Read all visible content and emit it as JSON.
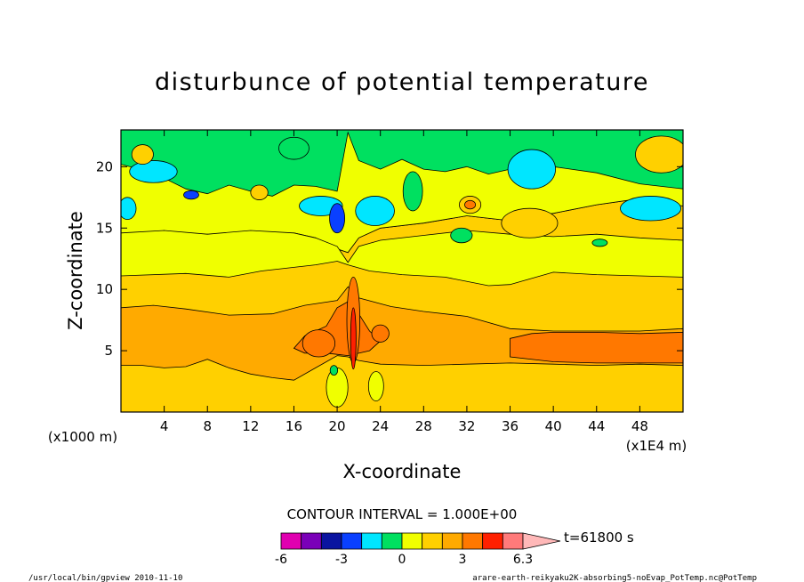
{
  "chart_data": {
    "type": "heatmap",
    "title": "disturbunce of potential temperature",
    "xlabel": "X-coordinate",
    "ylabel": "Z-coordinate",
    "x_unit_note": "(x1E4 m)",
    "y_unit_note": "(x1000 m)",
    "xlim": [
      0,
      52
    ],
    "ylim": [
      0,
      23
    ],
    "x_ticks": [
      4,
      8,
      12,
      16,
      20,
      24,
      28,
      32,
      36,
      40,
      44,
      48
    ],
    "y_ticks": [
      5,
      10,
      15,
      20
    ],
    "contour_interval_text": "CONTOUR INTERVAL = 1.000E+00",
    "colorbar": {
      "levels": [
        -6,
        -5,
        -4,
        -3,
        -2,
        -1,
        0,
        1,
        2,
        3,
        4,
        5,
        6
      ],
      "labels": [
        "-6",
        "-3",
        "0",
        "3",
        "6.3"
      ],
      "colors": [
        "#e000b0",
        "#7a00b8",
        "#0a14a0",
        "#0a40ff",
        "#00e6ff",
        "#00e060",
        "#f0ff00",
        "#ffd000",
        "#ffaa00",
        "#ff7800",
        "#ff2000",
        "#ff7a7a",
        "#ffb8b8"
      ]
    },
    "time_label": "t=61800 s",
    "footer_left": "/usr/local/bin/gpview  2010-11-10",
    "footer_right": "arare-earth-reikyaku2K-absorbing5-noEvap_PotTemp.nc@PotTemp",
    "layers": [
      {
        "name": "stratosphere-green",
        "color": "#00e060",
        "poly": [
          [
            0,
            23
          ],
          [
            52,
            23
          ],
          [
            52,
            16.8
          ],
          [
            48,
            17.4
          ],
          [
            44,
            16.9
          ],
          [
            40,
            16.2
          ],
          [
            36,
            15.6
          ],
          [
            32,
            16.0
          ],
          [
            28,
            15.4
          ],
          [
            24,
            15.0
          ],
          [
            22,
            14.2
          ],
          [
            21,
            13.0
          ],
          [
            20,
            13.3
          ],
          [
            18,
            14.2
          ],
          [
            16,
            14.6
          ],
          [
            14,
            14.0
          ],
          [
            12,
            14.5
          ],
          [
            10,
            14.0
          ],
          [
            8,
            14.5
          ],
          [
            6,
            14.0
          ],
          [
            4,
            14.8
          ],
          [
            2,
            14.2
          ],
          [
            0,
            13.8
          ]
        ]
      },
      {
        "name": "yellow-band-top",
        "color": "#f0ff00",
        "poly": [
          [
            0,
            20.2
          ],
          [
            3,
            19.5
          ],
          [
            6,
            18.2
          ],
          [
            8,
            17.8
          ],
          [
            10,
            18.5
          ],
          [
            12,
            18.0
          ],
          [
            14,
            17.6
          ],
          [
            16,
            18.5
          ],
          [
            18,
            18.4
          ],
          [
            20,
            18.0
          ],
          [
            21,
            22.8
          ],
          [
            22,
            20.5
          ],
          [
            24,
            19.8
          ],
          [
            26,
            20.6
          ],
          [
            28,
            19.8
          ],
          [
            30,
            19.6
          ],
          [
            32,
            20.0
          ],
          [
            34,
            19.4
          ],
          [
            36,
            19.8
          ],
          [
            38,
            20.5
          ],
          [
            40,
            20.0
          ],
          [
            44,
            19.5
          ],
          [
            48,
            18.6
          ],
          [
            52,
            18.2
          ],
          [
            52,
            16.8
          ],
          [
            48,
            17.4
          ],
          [
            44,
            16.9
          ],
          [
            40,
            16.2
          ],
          [
            36,
            15.6
          ],
          [
            32,
            16.0
          ],
          [
            28,
            15.4
          ],
          [
            24,
            15.0
          ],
          [
            22,
            14.2
          ],
          [
            21,
            13.0
          ],
          [
            20,
            13.3
          ],
          [
            18,
            14.2
          ],
          [
            16,
            14.6
          ],
          [
            14,
            14.0
          ],
          [
            12,
            14.5
          ],
          [
            10,
            14.0
          ],
          [
            8,
            14.5
          ],
          [
            6,
            14.0
          ],
          [
            4,
            14.8
          ],
          [
            2,
            14.2
          ],
          [
            0,
            13.8
          ]
        ]
      },
      {
        "name": "troposphere-yellow",
        "color": "#f0ff00",
        "poly": [
          [
            0,
            14.6
          ],
          [
            4,
            14.8
          ],
          [
            8,
            14.5
          ],
          [
            12,
            14.8
          ],
          [
            16,
            14.6
          ],
          [
            18,
            14.2
          ],
          [
            20,
            13.5
          ],
          [
            21,
            12.2
          ],
          [
            22,
            13.5
          ],
          [
            24,
            14.0
          ],
          [
            28,
            14.4
          ],
          [
            32,
            14.8
          ],
          [
            36,
            14.5
          ],
          [
            40,
            14.3
          ],
          [
            44,
            14.5
          ],
          [
            48,
            14.2
          ],
          [
            52,
            14.0
          ],
          [
            52,
            0
          ],
          [
            0,
            0
          ]
        ]
      },
      {
        "name": "orange-light",
        "color": "#ffd000",
        "poly": [
          [
            0,
            11.1
          ],
          [
            6,
            11.3
          ],
          [
            10,
            11.0
          ],
          [
            13,
            11.5
          ],
          [
            16,
            11.8
          ],
          [
            18,
            12.0
          ],
          [
            20,
            12.3
          ],
          [
            21,
            12.0
          ],
          [
            23,
            11.5
          ],
          [
            26,
            11.2
          ],
          [
            30,
            11.0
          ],
          [
            34,
            10.3
          ],
          [
            36,
            10.4
          ],
          [
            40,
            11.4
          ],
          [
            44,
            11.2
          ],
          [
            48,
            11.1
          ],
          [
            52,
            11.0
          ],
          [
            52,
            0
          ],
          [
            0,
            0
          ]
        ]
      },
      {
        "name": "orange-mid",
        "color": "#ffaa00",
        "poly": [
          [
            0,
            8.5
          ],
          [
            3,
            8.7
          ],
          [
            6,
            8.4
          ],
          [
            10,
            7.9
          ],
          [
            14,
            8.0
          ],
          [
            17,
            8.7
          ],
          [
            20,
            9.1
          ],
          [
            21,
            10.2
          ],
          [
            22,
            9.3
          ],
          [
            25,
            8.6
          ],
          [
            28,
            8.2
          ],
          [
            32,
            7.8
          ],
          [
            36,
            6.8
          ],
          [
            38,
            6.7
          ],
          [
            40,
            6.6
          ],
          [
            44,
            6.6
          ],
          [
            48,
            6.6
          ],
          [
            52,
            6.8
          ],
          [
            52,
            3.8
          ],
          [
            48,
            3.9
          ],
          [
            44,
            3.8
          ],
          [
            40,
            3.9
          ],
          [
            36,
            4.0
          ],
          [
            32,
            3.9
          ],
          [
            28,
            3.8
          ],
          [
            24,
            3.9
          ],
          [
            22,
            4.2
          ],
          [
            21,
            4.5
          ],
          [
            20,
            4.6
          ],
          [
            18,
            3.6
          ],
          [
            16,
            2.6
          ],
          [
            14,
            2.8
          ],
          [
            12,
            3.1
          ],
          [
            10,
            3.6
          ],
          [
            8,
            4.3
          ],
          [
            6,
            3.7
          ],
          [
            4,
            3.6
          ],
          [
            2,
            3.8
          ],
          [
            0,
            3.8
          ]
        ]
      },
      {
        "name": "orange-deep-center",
        "color": "#ff7800",
        "poly": [
          [
            16,
            5.2
          ],
          [
            17,
            6.2
          ],
          [
            18,
            6.6
          ],
          [
            19,
            7.0
          ],
          [
            20,
            8.5
          ],
          [
            21,
            9.0
          ],
          [
            22,
            8.0
          ],
          [
            23,
            6.6
          ],
          [
            24,
            5.8
          ],
          [
            23,
            5.0
          ],
          [
            21,
            4.6
          ],
          [
            19,
            4.8
          ],
          [
            17,
            4.8
          ]
        ]
      },
      {
        "name": "orange-deep-right",
        "color": "#ff7800",
        "poly": [
          [
            36,
            6.0
          ],
          [
            38,
            6.4
          ],
          [
            40,
            6.5
          ],
          [
            44,
            6.5
          ],
          [
            48,
            6.4
          ],
          [
            52,
            6.5
          ],
          [
            52,
            4.0
          ],
          [
            48,
            4.0
          ],
          [
            44,
            4.0
          ],
          [
            40,
            4.1
          ],
          [
            36,
            4.5
          ]
        ]
      }
    ],
    "blobs": [
      {
        "color": "#00e6ff",
        "cx": 3,
        "cy": 19.6,
        "rx": 2.2,
        "ry": 0.9
      },
      {
        "color": "#00e6ff",
        "cx": 0.6,
        "cy": 16.6,
        "rx": 0.8,
        "ry": 0.9
      },
      {
        "color": "#00e6ff",
        "cx": 38,
        "cy": 19.8,
        "rx": 2.2,
        "ry": 1.6
      },
      {
        "color": "#00e6ff",
        "cx": 49,
        "cy": 16.6,
        "rx": 2.8,
        "ry": 1.0
      },
      {
        "color": "#00e6ff",
        "cx": 18.5,
        "cy": 16.8,
        "rx": 2.0,
        "ry": 0.8
      },
      {
        "color": "#00e6ff",
        "cx": 23.5,
        "cy": 16.4,
        "rx": 1.8,
        "ry": 1.2
      },
      {
        "color": "#0a40ff",
        "cx": 20,
        "cy": 15.8,
        "rx": 0.7,
        "ry": 1.2
      },
      {
        "color": "#0a40ff",
        "cx": 6.5,
        "cy": 17.7,
        "rx": 0.7,
        "ry": 0.35
      },
      {
        "color": "#00e060",
        "cx": 16,
        "cy": 21.5,
        "rx": 1.4,
        "ry": 0.9
      },
      {
        "color": "#00e060",
        "cx": 27,
        "cy": 18.0,
        "rx": 0.9,
        "ry": 1.6
      },
      {
        "color": "#00e060",
        "cx": 31.5,
        "cy": 14.4,
        "rx": 1.0,
        "ry": 0.6
      },
      {
        "color": "#00e060",
        "cx": 44.3,
        "cy": 13.8,
        "rx": 0.7,
        "ry": 0.3
      },
      {
        "color": "#ffd000",
        "cx": 12.8,
        "cy": 17.9,
        "rx": 0.8,
        "ry": 0.6
      },
      {
        "color": "#ffd000",
        "cx": 32.3,
        "cy": 16.9,
        "rx": 1.0,
        "ry": 0.7
      },
      {
        "color": "#ffd000",
        "cx": 37.8,
        "cy": 15.4,
        "rx": 2.6,
        "ry": 1.2
      },
      {
        "color": "#ffd000",
        "cx": 50,
        "cy": 21.0,
        "rx": 2.4,
        "ry": 1.5
      },
      {
        "color": "#ffd000",
        "cx": 2,
        "cy": 21.0,
        "rx": 1.0,
        "ry": 0.8
      },
      {
        "color": "#ff7800",
        "cx": 32.3,
        "cy": 16.9,
        "rx": 0.5,
        "ry": 0.35
      },
      {
        "color": "#ff7800",
        "cx": 18.3,
        "cy": 5.6,
        "rx": 1.5,
        "ry": 1.1
      },
      {
        "color": "#ff7800",
        "cx": 24,
        "cy": 6.4,
        "rx": 0.8,
        "ry": 0.7
      },
      {
        "color": "#f0ff00",
        "cx": 20,
        "cy": 2.0,
        "rx": 1.0,
        "ry": 1.6
      },
      {
        "color": "#f0ff00",
        "cx": 23.6,
        "cy": 2.1,
        "rx": 0.7,
        "ry": 1.2
      },
      {
        "color": "#00e060",
        "cx": 19.7,
        "cy": 3.4,
        "rx": 0.35,
        "ry": 0.4
      },
      {
        "color": "#ff7800",
        "cx": 21.5,
        "cy": 7.5,
        "rx": 0.6,
        "ry": 3.5
      },
      {
        "color": "#ff2000",
        "cx": 21.5,
        "cy": 6.0,
        "rx": 0.25,
        "ry": 2.5
      }
    ]
  }
}
